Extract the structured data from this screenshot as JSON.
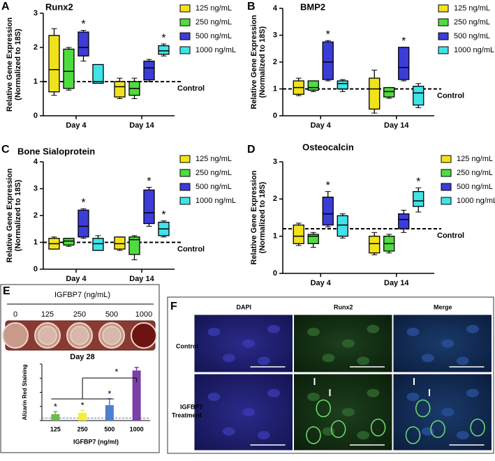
{
  "panel_labels": [
    "A",
    "B",
    "C",
    "D",
    "E",
    "F"
  ],
  "chart_data": [
    {
      "type": "box",
      "title": "Runx2",
      "y_label": [
        "Relative Gene Expression",
        "(Normalized to 18S)"
      ],
      "categories": [
        "Day 4",
        "Day 14"
      ],
      "ylim": [
        0,
        3
      ],
      "yticks": [
        0,
        1,
        2,
        3
      ],
      "reference_line": {
        "value": 1,
        "label": "Control"
      },
      "series": [
        {
          "name": "125 ng/mL",
          "color": "#f2e21c",
          "boxes": [
            {
              "min": 0.6,
              "q1": 0.7,
              "median": 1.35,
              "q3": 2.35,
              "max": 2.55
            },
            {
              "min": 0.5,
              "q1": 0.55,
              "median": 0.85,
              "q3": 1.0,
              "max": 1.1
            }
          ],
          "annotations": [
            null,
            null
          ]
        },
        {
          "name": "250 ng/mL",
          "color": "#4fdc3f",
          "boxes": [
            {
              "min": 0.75,
              "q1": 0.8,
              "median": 1.3,
              "q3": 1.95,
              "max": 2.0
            },
            {
              "min": 0.5,
              "q1": 0.6,
              "median": 0.8,
              "q3": 1.0,
              "max": 1.1
            }
          ],
          "annotations": [
            null,
            null
          ]
        },
        {
          "name": "500 ng/mL",
          "color": "#3c3cd8",
          "boxes": [
            {
              "min": 1.6,
              "q1": 1.75,
              "median": 2.0,
              "q3": 2.45,
              "max": 2.5
            },
            {
              "min": 1.0,
              "q1": 1.05,
              "median": 1.4,
              "q3": 1.6,
              "max": 1.65
            }
          ],
          "annotations": [
            "*",
            null
          ]
        },
        {
          "name": "1000 ng/mL",
          "color": "#3fe3e8",
          "boxes": [
            {
              "min": 0.95,
              "q1": 0.95,
              "median": 1.0,
              "q3": 1.5,
              "max": 1.5
            },
            {
              "min": 1.75,
              "q1": 1.8,
              "median": 1.9,
              "q3": 2.05,
              "max": 2.1
            }
          ],
          "annotations": [
            null,
            "*"
          ]
        }
      ]
    },
    {
      "type": "box",
      "title": "BMP2",
      "y_label": [
        "Relative Gene Expression",
        "(Normalized to 18S)"
      ],
      "categories": [
        "Day 4",
        "Day 14"
      ],
      "ylim": [
        0,
        4
      ],
      "yticks": [
        0,
        1,
        2,
        3,
        4
      ],
      "reference_line": {
        "value": 1,
        "label": "Control"
      },
      "series": [
        {
          "name": "125 ng/mL",
          "color": "#f2e21c",
          "boxes": [
            {
              "min": 0.75,
              "q1": 0.8,
              "median": 1.05,
              "q3": 1.3,
              "max": 1.4
            },
            {
              "min": 0.1,
              "q1": 0.25,
              "median": 1.0,
              "q3": 1.4,
              "max": 1.7
            }
          ],
          "annotations": [
            null,
            null
          ]
        },
        {
          "name": "250 ng/mL",
          "color": "#4fdc3f",
          "boxes": [
            {
              "min": 0.9,
              "q1": 0.95,
              "median": 1.05,
              "q3": 1.3,
              "max": 1.3
            },
            {
              "min": 0.65,
              "q1": 0.7,
              "median": 0.9,
              "q3": 1.05,
              "max": 1.05
            }
          ],
          "annotations": [
            null,
            null
          ]
        },
        {
          "name": "500 ng/mL",
          "color": "#3c3cd8",
          "boxes": [
            {
              "min": 1.3,
              "q1": 1.35,
              "median": 2.0,
              "q3": 2.75,
              "max": 2.8
            },
            {
              "min": 1.3,
              "q1": 1.35,
              "median": 1.8,
              "q3": 2.55,
              "max": 2.55
            }
          ],
          "annotations": [
            "*",
            "*"
          ]
        },
        {
          "name": "1000 ng/mL",
          "color": "#3fe3e8",
          "boxes": [
            {
              "min": 0.9,
              "q1": 1.0,
              "median": 1.2,
              "q3": 1.3,
              "max": 1.35
            },
            {
              "min": 0.3,
              "q1": 0.4,
              "median": 0.85,
              "q3": 1.1,
              "max": 1.2
            }
          ],
          "annotations": [
            null,
            null
          ]
        }
      ]
    },
    {
      "type": "box",
      "title": "Bone Sialoprotein",
      "y_label": [
        "Relative Gene Expression",
        "(Normalized to 18S)"
      ],
      "categories": [
        "Day 4",
        "Day 14"
      ],
      "ylim": [
        0,
        4
      ],
      "yticks": [
        0,
        1,
        2,
        3,
        4
      ],
      "reference_line": {
        "value": 1,
        "label": "Control"
      },
      "series": [
        {
          "name": "125 ng/mL",
          "color": "#f2e21c",
          "boxes": [
            {
              "min": 0.75,
              "q1": 0.75,
              "median": 0.95,
              "q3": 1.15,
              "max": 1.2
            },
            {
              "min": 0.7,
              "q1": 0.75,
              "median": 0.95,
              "q3": 1.2,
              "max": 1.2
            }
          ],
          "annotations": [
            null,
            null
          ]
        },
        {
          "name": "250 ng/mL",
          "color": "#4fdc3f",
          "boxes": [
            {
              "min": 0.85,
              "q1": 0.9,
              "median": 1.05,
              "q3": 1.15,
              "max": 1.15
            },
            {
              "min": 0.35,
              "q1": 0.55,
              "median": 1.1,
              "q3": 1.2,
              "max": 1.25
            }
          ],
          "annotations": [
            null,
            null
          ]
        },
        {
          "name": "500 ng/mL",
          "color": "#3c3cd8",
          "boxes": [
            {
              "min": 1.15,
              "q1": 1.2,
              "median": 1.6,
              "q3": 2.2,
              "max": 2.25
            },
            {
              "min": 1.6,
              "q1": 1.7,
              "median": 2.1,
              "q3": 2.95,
              "max": 3.05
            }
          ],
          "annotations": [
            "*",
            "*"
          ]
        },
        {
          "name": "1000 ng/mL",
          "color": "#3fe3e8",
          "boxes": [
            {
              "min": 0.7,
              "q1": 0.7,
              "median": 0.95,
              "q3": 1.15,
              "max": 1.25
            },
            {
              "min": 1.2,
              "q1": 1.25,
              "median": 1.5,
              "q3": 1.75,
              "max": 1.8
            }
          ],
          "annotations": [
            null,
            "*"
          ]
        }
      ]
    },
    {
      "type": "box",
      "title": "Osteocalcin",
      "y_label": [
        "Relative Gene Expression",
        "(Normalized to 18S)"
      ],
      "categories": [
        "Day 4",
        "Day 14"
      ],
      "ylim": [
        0,
        3
      ],
      "yticks": [
        0,
        1,
        2,
        3
      ],
      "reference_line": {
        "value": 1.2,
        "label": "Control"
      },
      "series": [
        {
          "name": "125 ng/mL",
          "color": "#f2e21c",
          "boxes": [
            {
              "min": 0.75,
              "q1": 0.8,
              "median": 1.0,
              "q3": 1.3,
              "max": 1.35
            },
            {
              "min": 0.5,
              "q1": 0.55,
              "median": 0.8,
              "q3": 1.0,
              "max": 1.1
            }
          ],
          "annotations": [
            null,
            null
          ]
        },
        {
          "name": "250 ng/mL",
          "color": "#4fdc3f",
          "boxes": [
            {
              "min": 0.7,
              "q1": 0.8,
              "median": 1.0,
              "q3": 1.05,
              "max": 1.1
            },
            {
              "min": 0.55,
              "q1": 0.6,
              "median": 0.8,
              "q3": 1.0,
              "max": 1.05
            }
          ],
          "annotations": [
            null,
            null
          ]
        },
        {
          "name": "500 ng/mL",
          "color": "#3c3cd8",
          "boxes": [
            {
              "min": 1.25,
              "q1": 1.3,
              "median": 1.6,
              "q3": 2.05,
              "max": 2.2
            },
            {
              "min": 1.1,
              "q1": 1.2,
              "median": 1.45,
              "q3": 1.6,
              "max": 1.7
            }
          ],
          "annotations": [
            "*",
            null
          ]
        },
        {
          "name": "1000 ng/mL",
          "color": "#3fe3e8",
          "boxes": [
            {
              "min": 0.95,
              "q1": 1.0,
              "median": 1.3,
              "q3": 1.55,
              "max": 1.6
            },
            {
              "min": 1.65,
              "q1": 1.8,
              "median": 1.95,
              "q3": 2.2,
              "max": 2.3
            }
          ],
          "annotations": [
            null,
            "*"
          ]
        }
      ]
    },
    {
      "type": "bar",
      "title": "Day 28",
      "y_label": "Alizarin Red Staining",
      "x_label": "IGFBP7 (ng/ml)",
      "categories": [
        "125",
        "250",
        "500",
        "1000"
      ],
      "values": [
        2.5,
        3,
        6,
        19.5
      ],
      "errors": [
        1,
        1,
        2.5,
        1.2
      ],
      "colors": [
        "#6dbb4a",
        "#f2ee3c",
        "#4c7fd0",
        "#7b3fa8"
      ],
      "annotations": [
        "*",
        "*",
        "*",
        null
      ],
      "comparison_label": "*",
      "reference_line": {
        "value": 1
      },
      "ylim": [
        0,
        22
      ]
    }
  ],
  "panel_e": {
    "header": "IGFBP7 (ng/mL)",
    "concentrations": [
      "0",
      "125",
      "250",
      "500",
      "1000"
    ]
  },
  "panel_f": {
    "columns": [
      "DAPI",
      "Runx2",
      "Merge"
    ],
    "rows": [
      "Control",
      [
        "IGFBP7",
        "Treatment"
      ]
    ]
  }
}
